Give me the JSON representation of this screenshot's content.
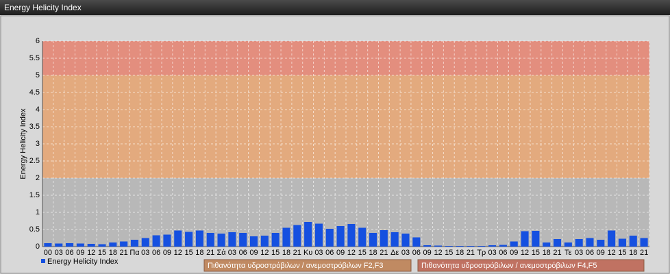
{
  "chart_data": {
    "type": "bar",
    "title": "Energy Helicity Index",
    "y_label": "Energy Helicity Index",
    "categories": [
      "00",
      "03",
      "06",
      "09",
      "12",
      "15",
      "18",
      "21",
      "Πα",
      "03",
      "06",
      "09",
      "12",
      "15",
      "18",
      "21",
      "Σά",
      "03",
      "06",
      "09",
      "12",
      "15",
      "18",
      "21",
      "Κυ",
      "03",
      "06",
      "09",
      "12",
      "15",
      "18",
      "21",
      "Δε",
      "03",
      "06",
      "09",
      "12",
      "15",
      "18",
      "21",
      "Τρ",
      "03",
      "06",
      "09",
      "12",
      "15",
      "18",
      "21",
      "Τε",
      "03",
      "06",
      "09",
      "12",
      "15",
      "18",
      "21"
    ],
    "series": [
      {
        "name": "Energy Helicity Index",
        "color": "#1550e0",
        "values": [
          0.1,
          0.09,
          0.1,
          0.09,
          0.08,
          0.07,
          0.12,
          0.15,
          0.2,
          0.25,
          0.33,
          0.35,
          0.47,
          0.43,
          0.47,
          0.4,
          0.38,
          0.42,
          0.4,
          0.3,
          0.32,
          0.4,
          0.55,
          0.63,
          0.72,
          0.67,
          0.52,
          0.6,
          0.66,
          0.55,
          0.4,
          0.48,
          0.42,
          0.38,
          0.27,
          0.04,
          0.03,
          0.02,
          0.02,
          0.02,
          0.02,
          0.04,
          0.05,
          0.15,
          0.45,
          0.46,
          0.12,
          0.22,
          0.12,
          0.22,
          0.25,
          0.2,
          0.47,
          0.23,
          0.32,
          0.25
        ]
      }
    ],
    "bands": [
      {
        "from": 2,
        "to": 5,
        "color": "#e8a878",
        "legend_color": "#c08a62",
        "label": "Πιθανότητα υδροστρόβιλων / ανεμοστρόβιλων F2,F3"
      },
      {
        "from": 5,
        "to": 6,
        "color": "#e88a78",
        "legend_color": "#c07262",
        "label": "Πιθανότητα υδροστρόβιλων / ανεμοστρόβιλων F4,F5"
      }
    ],
    "plot_background": "#b8b8b8",
    "ylim": [
      0,
      6
    ],
    "yticks": [
      0,
      0.5,
      1,
      1.5,
      2,
      2.5,
      3,
      3.5,
      4,
      4.5,
      5,
      5.5,
      6
    ],
    "grid": true
  }
}
